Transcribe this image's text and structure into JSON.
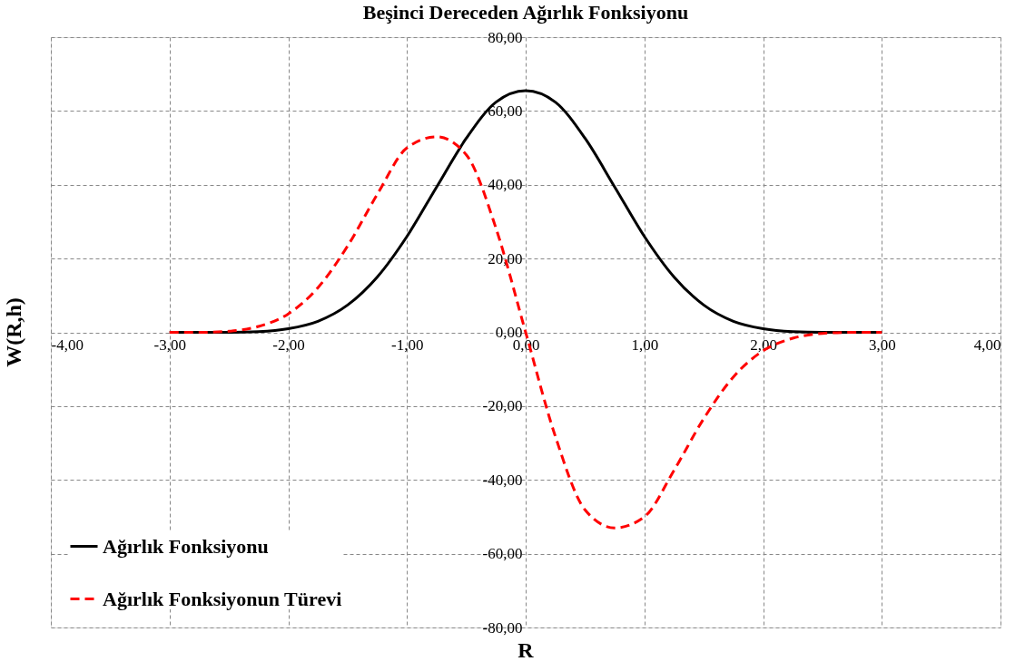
{
  "chart_data": {
    "type": "line",
    "title": "Beşinci Dereceden Ağırlık Fonksiyonu",
    "xlabel": "R",
    "ylabel": "W(R,h)",
    "x": [
      -3,
      -2.75,
      -2.5,
      -2.25,
      -2,
      -1.75,
      -1.5,
      -1.25,
      -1,
      -0.75,
      -0.5,
      -0.25,
      0,
      0.25,
      0.5,
      0.75,
      1,
      1.25,
      1.5,
      1.75,
      2,
      2.25,
      2.5,
      2.75,
      3
    ],
    "series": [
      {
        "name": "Ağırlık Fonksiyonu",
        "color": "#000000",
        "line_style": "solid",
        "values": [
          0,
          0,
          0,
          0.2,
          1,
          3,
          7.4,
          15,
          26,
          39.4,
          52.6,
          62.4,
          65.5,
          62.4,
          52.6,
          39.4,
          26,
          15,
          7.4,
          3,
          1,
          0.2,
          0,
          0,
          0
        ]
      },
      {
        "name": "Ağırlık Fonksiyonun Türevi",
        "color": "#ff0000",
        "line_style": "dashed",
        "values": [
          0,
          0,
          0.3,
          1.6,
          5,
          12.1,
          23.4,
          37.4,
          50,
          53,
          48.1,
          28.2,
          0,
          -28.2,
          -48.1,
          -53,
          -50,
          -37.4,
          -23.4,
          -12.1,
          -5,
          -1.6,
          -0.3,
          0,
          0
        ]
      }
    ],
    "xlim": [
      -4,
      4
    ],
    "ylim": [
      -80,
      80
    ],
    "xticks": [
      {
        "value": -4,
        "label": "-4,00"
      },
      {
        "value": -3,
        "label": "-3,00"
      },
      {
        "value": -2,
        "label": "-2,00"
      },
      {
        "value": -1,
        "label": "-1,00"
      },
      {
        "value": 0,
        "label": "0,00"
      },
      {
        "value": 1,
        "label": "1,00"
      },
      {
        "value": 2,
        "label": "2,00"
      },
      {
        "value": 3,
        "label": "3,00"
      },
      {
        "value": 4,
        "label": "4,00"
      }
    ],
    "yticks": [
      {
        "value": -80,
        "label": "-80,00"
      },
      {
        "value": -60,
        "label": "-60,00"
      },
      {
        "value": -40,
        "label": "-40,00"
      },
      {
        "value": -20,
        "label": "-20,00"
      },
      {
        "value": 0,
        "label": "0,00"
      },
      {
        "value": 20,
        "label": "20,00"
      },
      {
        "value": 40,
        "label": "40,00"
      },
      {
        "value": 60,
        "label": "60,00"
      },
      {
        "value": 80,
        "label": "80,00"
      }
    ],
    "grid": true,
    "legend": "bottom left",
    "marker": "none"
  }
}
